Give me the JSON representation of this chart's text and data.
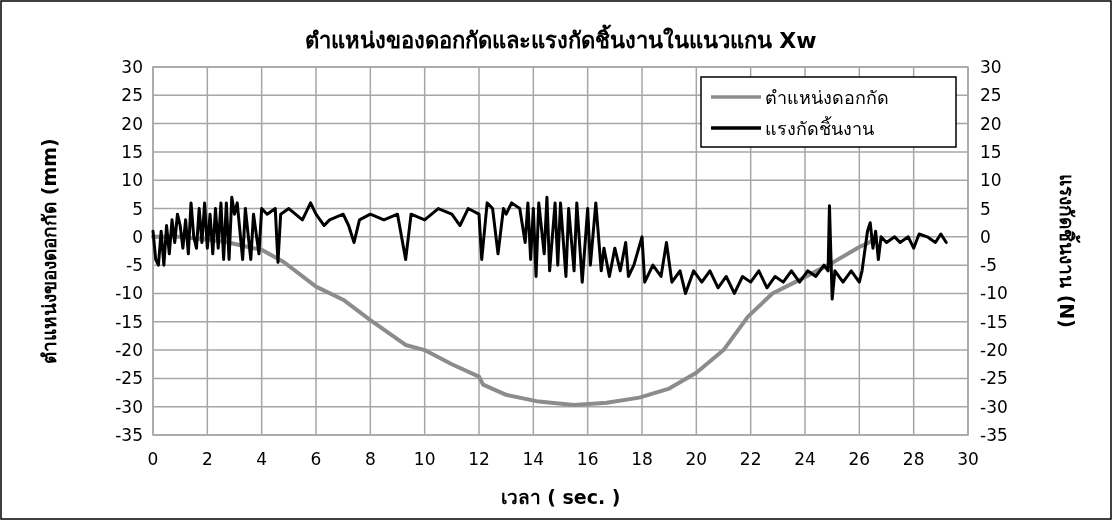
{
  "chart_data": {
    "type": "line",
    "title": "ตำแหน่งของดอกกัดและแรงกัดชิ้นงานในแนวแกน Xw",
    "xlabel": "เวลา ( sec. )",
    "ylabel": "ตำแหน่งของดอกกัด (mm)",
    "y2label": "แรงกัดชิ้นงาน (N)",
    "xlim": [
      0,
      30
    ],
    "xticks": [
      0,
      2,
      4,
      6,
      8,
      10,
      12,
      14,
      16,
      18,
      20,
      22,
      24,
      26,
      28,
      30
    ],
    "ylim": [
      -35,
      30
    ],
    "yticks": [
      -35,
      -30,
      -25,
      -20,
      -15,
      -10,
      -5,
      0,
      5,
      10,
      15,
      20,
      25,
      30
    ],
    "y2lim": [
      -35,
      30
    ],
    "y2ticks": [
      -35,
      -30,
      -25,
      -20,
      -15,
      -10,
      -5,
      0,
      5,
      10,
      15,
      20,
      25,
      30
    ],
    "grid": true,
    "legend": "top right",
    "series": [
      {
        "name": "ตำแหน่งดอกกัด",
        "color": "#8c8c8c",
        "x": [
          0,
          1,
          2,
          2.7,
          3.5,
          4.0,
          4.8,
          6.0,
          7.0,
          8.0,
          9.3,
          10.0,
          11,
          12.0,
          12.15,
          13.0,
          14.2,
          15.5,
          16.7,
          17.9,
          19,
          20,
          21,
          21.9,
          22.8,
          23.8,
          25.0,
          26.0,
          26.4,
          26.6
        ],
        "values": [
          0,
          0,
          -0.5,
          -0.9,
          -1.8,
          -2.3,
          -4.4,
          -8.8,
          -11.1,
          -14.7,
          -19.1,
          -20,
          -22.5,
          -24.7,
          -26.1,
          -27.9,
          -29.1,
          -29.7,
          -29.3,
          -28.4,
          -26.8,
          -24,
          -20,
          -14.1,
          -10,
          -7.6,
          -4.6,
          -1.8,
          -0.9,
          0
        ]
      },
      {
        "name": "แรงกัดชิ้นงาน",
        "color": "#000000",
        "axis": "y2",
        "x": [
          0,
          0.1,
          0.2,
          0.3,
          0.4,
          0.5,
          0.6,
          0.7,
          0.8,
          0.9,
          1.0,
          1.1,
          1.2,
          1.3,
          1.4,
          1.5,
          1.6,
          1.7,
          1.8,
          1.9,
          2.0,
          2.1,
          2.2,
          2.3,
          2.4,
          2.5,
          2.6,
          2.7,
          2.8,
          2.9,
          3.0,
          3.1,
          3.3,
          3.4,
          3.6,
          3.7,
          3.9,
          4.0,
          4.2,
          4.5,
          4.6,
          4.7,
          5.0,
          5.5,
          5.8,
          6.0,
          6.3,
          6.5,
          7.0,
          7.2,
          7.4,
          7.6,
          8.0,
          8.5,
          9.0,
          9.3,
          9.5,
          10.0,
          10.5,
          11.0,
          11.3,
          11.6,
          12.0,
          12.1,
          12.3,
          12.5,
          12.7,
          12.9,
          13.0,
          13.2,
          13.5,
          13.7,
          13.8,
          13.9,
          14.0,
          14.1,
          14.2,
          14.4,
          14.5,
          14.6,
          14.8,
          14.9,
          15.0,
          15.2,
          15.3,
          15.5,
          15.6,
          15.8,
          16.0,
          16.1,
          16.3,
          16.5,
          16.6,
          16.8,
          17.0,
          17.2,
          17.4,
          17.5,
          17.7,
          18.0,
          18.1,
          18.4,
          18.7,
          18.9,
          19.1,
          19.4,
          19.6,
          19.9,
          20.2,
          20.5,
          20.8,
          21.1,
          21.4,
          21.7,
          22.0,
          22.3,
          22.6,
          22.9,
          23.2,
          23.5,
          23.8,
          24.1,
          24.4,
          24.7,
          24.85,
          24.9,
          25.0,
          25.1,
          25.4,
          25.7,
          26.0,
          26.1,
          26.3,
          26.4,
          26.5,
          26.6,
          26.7,
          26.8,
          27.0,
          27.3,
          27.5,
          27.8,
          28.0,
          28.2,
          28.5,
          28.8,
          29.0,
          29.2
        ],
        "values": [
          1,
          -4,
          -5,
          1,
          -5,
          2,
          -3,
          3,
          -1,
          4,
          2,
          -2,
          3,
          -3,
          6,
          0,
          -2,
          5,
          -1,
          6,
          -2,
          4,
          -3,
          5,
          -2,
          6,
          -4,
          6,
          -4,
          7,
          4,
          6,
          -4,
          5,
          -4,
          4,
          -3,
          5,
          4,
          5,
          -4.5,
          4,
          5,
          3,
          6,
          4,
          2,
          3,
          4,
          2,
          -1,
          3,
          4,
          3,
          4,
          -4,
          4,
          3,
          5,
          4,
          2,
          5,
          4,
          -4,
          6,
          5,
          -3,
          5,
          4,
          6,
          5,
          -1,
          6,
          -4,
          5,
          -7,
          6,
          -3,
          7,
          -6,
          6,
          -5,
          6,
          -7,
          5,
          -6,
          6,
          -8,
          5,
          -5,
          6,
          -6,
          -2,
          -7,
          -2,
          -6,
          -1,
          -7,
          -5,
          0,
          -8,
          -5,
          -7,
          -1,
          -8,
          -6,
          -10,
          -6,
          -8,
          -6,
          -9,
          -7,
          -10,
          -7,
          -8,
          -6,
          -9,
          -7,
          -8,
          -6,
          -8,
          -6,
          -7,
          -5,
          -6,
          5.5,
          -11,
          -6,
          -8,
          -6,
          -8,
          -6,
          1,
          2.5,
          -2,
          1,
          -4,
          0,
          -1,
          0,
          -1,
          0,
          -2,
          0.5,
          0,
          -1,
          0.5,
          -1
        ]
      }
    ]
  }
}
